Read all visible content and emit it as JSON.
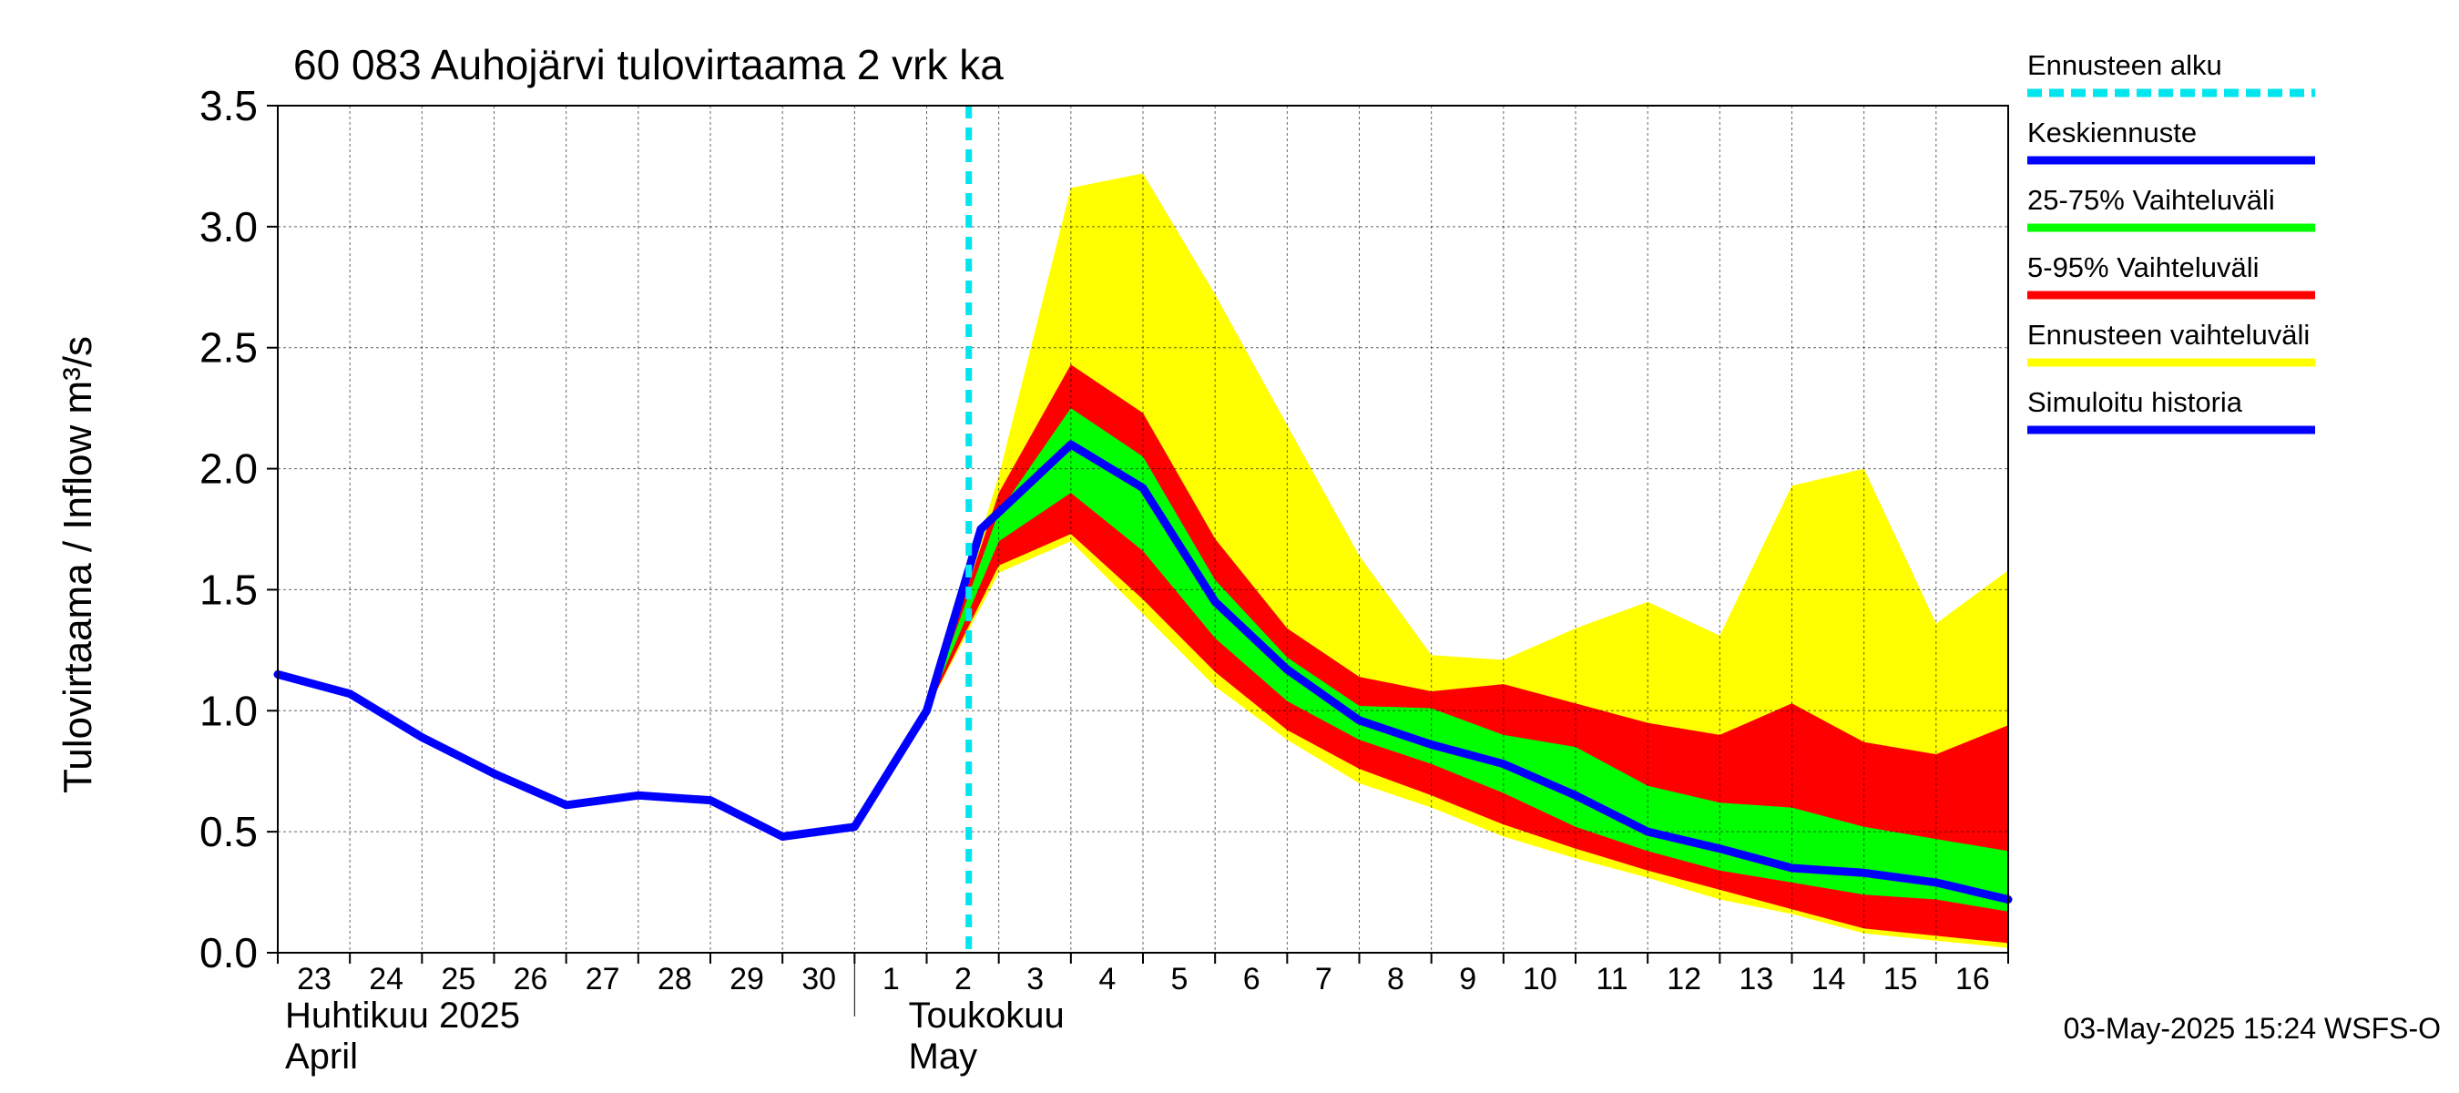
{
  "chart_data": {
    "type": "area",
    "title": "60 083 Auhojärvi tulovirtaama 2 vrk ka",
    "ylabel": "Tulovirtaama / Inflow    m³/s",
    "ylim": [
      0,
      3.5
    ],
    "yticks": [
      "0.0",
      "0.5",
      "1.0",
      "1.5",
      "2.0",
      "2.5",
      "3.0",
      "3.5"
    ],
    "x_tick_labels": [
      "23",
      "24",
      "25",
      "26",
      "27",
      "28",
      "29",
      "30",
      "1",
      "2",
      "3",
      "4",
      "5",
      "6",
      "7",
      "8",
      "9",
      "10",
      "11",
      "12",
      "13",
      "14",
      "15",
      "16"
    ],
    "month_labels": [
      {
        "line1": "Huhtikuu  2025",
        "line2": "April"
      },
      {
        "line1": "Toukokuu",
        "line2": "May"
      }
    ],
    "forecast_start": "2025-05-02T14:00",
    "grid": true,
    "legend_position": "right",
    "timestamp": "03-May-2025 15:24 WSFS-O",
    "legend": [
      {
        "label": "Ennusteen alku",
        "color": "#00e5ee",
        "style": "dashed"
      },
      {
        "label": "Keskiennuste",
        "color": "#0000ff",
        "style": "solid"
      },
      {
        "label": "25-75% Vaihteluväli",
        "color": "#00ff00",
        "style": "solid"
      },
      {
        "label": "5-95% Vaihteluväli",
        "color": "#ff0000",
        "style": "solid"
      },
      {
        "label": "Ennusteen vaihteluväli",
        "color": "#ffff00",
        "style": "solid"
      },
      {
        "label": "Simuloitu historia",
        "color": "#0000ff",
        "style": "solid"
      }
    ],
    "series": [
      {
        "name": "Simuloitu historia",
        "color": "#0000ff",
        "x": [
          "2025-04-23",
          "2025-04-24",
          "2025-04-25",
          "2025-04-26",
          "2025-04-27",
          "2025-04-28",
          "2025-04-29",
          "2025-04-30",
          "2025-05-01",
          "2025-05-02",
          "2025-05-02T18:00"
        ],
        "y": [
          1.15,
          1.07,
          0.89,
          0.74,
          0.61,
          0.65,
          0.63,
          0.48,
          0.52,
          1.0,
          1.75
        ]
      },
      {
        "name": "Keskiennuste",
        "color": "#0000ff",
        "x": [
          "2025-05-02T18:00",
          "2025-05-04",
          "2025-05-05",
          "2025-05-06",
          "2025-05-07",
          "2025-05-08",
          "2025-05-09",
          "2025-05-10",
          "2025-05-11",
          "2025-05-12",
          "2025-05-13",
          "2025-05-14",
          "2025-05-15",
          "2025-05-16",
          "2025-05-17"
        ],
        "y": [
          1.75,
          2.1,
          1.92,
          1.45,
          1.17,
          0.96,
          0.86,
          0.78,
          0.65,
          0.5,
          0.43,
          0.35,
          0.33,
          0.29,
          0.22
        ]
      }
    ],
    "bands": [
      {
        "name": "Ennusteen vaihteluväli",
        "color": "#ffff00",
        "x": [
          "2025-05-02",
          "2025-05-03",
          "2025-05-04",
          "2025-05-05",
          "2025-05-06",
          "2025-05-07",
          "2025-05-08",
          "2025-05-09",
          "2025-05-10",
          "2025-05-11",
          "2025-05-12",
          "2025-05-13",
          "2025-05-14",
          "2025-05-15",
          "2025-05-16",
          "2025-05-17"
        ],
        "upper": [
          1.0,
          1.97,
          3.16,
          3.22,
          2.72,
          2.18,
          1.64,
          1.23,
          1.21,
          1.34,
          1.45,
          1.31,
          1.93,
          2.0,
          1.36,
          1.58
        ],
        "lower": [
          1.0,
          1.57,
          1.7,
          1.4,
          1.1,
          0.88,
          0.7,
          0.6,
          0.48,
          0.39,
          0.31,
          0.22,
          0.16,
          0.08,
          0.05,
          0.02
        ]
      },
      {
        "name": "5-95% Vaihteluväli",
        "color": "#ff0000",
        "x": [
          "2025-05-02",
          "2025-05-03",
          "2025-05-04",
          "2025-05-05",
          "2025-05-06",
          "2025-05-07",
          "2025-05-08",
          "2025-05-09",
          "2025-05-10",
          "2025-05-11",
          "2025-05-12",
          "2025-05-13",
          "2025-05-14",
          "2025-05-15",
          "2025-05-16",
          "2025-05-17"
        ],
        "upper": [
          1.0,
          1.9,
          2.43,
          2.23,
          1.71,
          1.34,
          1.14,
          1.08,
          1.11,
          1.03,
          0.95,
          0.9,
          1.03,
          0.87,
          0.82,
          0.94
        ],
        "lower": [
          1.0,
          1.6,
          1.73,
          1.46,
          1.16,
          0.92,
          0.76,
          0.65,
          0.53,
          0.43,
          0.34,
          0.26,
          0.18,
          0.1,
          0.07,
          0.04
        ]
      },
      {
        "name": "25-75% Vaihteluväli",
        "color": "#00ff00",
        "x": [
          "2025-05-02",
          "2025-05-03",
          "2025-05-04",
          "2025-05-05",
          "2025-05-06",
          "2025-05-07",
          "2025-05-08",
          "2025-05-09",
          "2025-05-10",
          "2025-05-11",
          "2025-05-12",
          "2025-05-13",
          "2025-05-14",
          "2025-05-15",
          "2025-05-16",
          "2025-05-17"
        ],
        "upper": [
          1.0,
          1.82,
          2.25,
          2.05,
          1.54,
          1.22,
          1.02,
          1.01,
          0.9,
          0.85,
          0.69,
          0.62,
          0.6,
          0.52,
          0.47,
          0.42
        ],
        "lower": [
          1.0,
          1.7,
          1.9,
          1.66,
          1.3,
          1.04,
          0.88,
          0.78,
          0.66,
          0.52,
          0.42,
          0.34,
          0.29,
          0.24,
          0.22,
          0.17
        ]
      }
    ]
  }
}
